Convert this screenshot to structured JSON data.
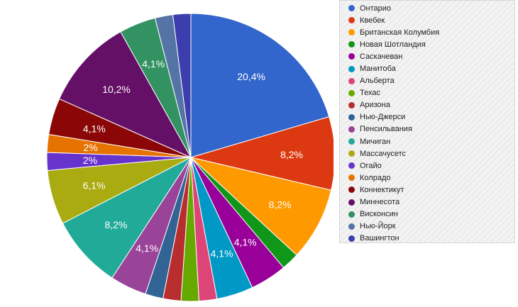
{
  "chart_data": {
    "type": "pie",
    "title": "",
    "legend_position": "right",
    "slices": [
      {
        "name": "Онтарио",
        "value": 20.4,
        "label": "20,4%",
        "color": "#3366cc"
      },
      {
        "name": "Квебек",
        "value": 8.2,
        "label": "8,2%",
        "color": "#dc3912"
      },
      {
        "name": "Британская Колумбия",
        "value": 8.2,
        "label": "8,2%",
        "color": "#ff9900"
      },
      {
        "name": "Новая Шотландия",
        "value": 2.0,
        "label": "",
        "color": "#109618"
      },
      {
        "name": "Саскачеван",
        "value": 4.1,
        "label": "4,1%",
        "color": "#990099"
      },
      {
        "name": "Манитоба",
        "value": 4.1,
        "label": "4,1%",
        "color": "#0099c6"
      },
      {
        "name": "Альберта",
        "value": 2.0,
        "label": "",
        "color": "#dd4477"
      },
      {
        "name": "Техас",
        "value": 2.0,
        "label": "",
        "color": "#66aa00"
      },
      {
        "name": "Аризона",
        "value": 2.0,
        "label": "",
        "color": "#b82e2e"
      },
      {
        "name": "Нью-Джерси",
        "value": 2.0,
        "label": "",
        "color": "#316395"
      },
      {
        "name": "Пенсильвания",
        "value": 4.1,
        "label": "4,1%",
        "color": "#994499"
      },
      {
        "name": "Мичиган",
        "value": 8.2,
        "label": "8,2%",
        "color": "#22aa99"
      },
      {
        "name": "Массачусетс",
        "value": 6.1,
        "label": "6,1%",
        "color": "#aaaa11"
      },
      {
        "name": "Огайо",
        "value": 2.0,
        "label": "2%",
        "color": "#6633cc"
      },
      {
        "name": "Колрадо",
        "value": 2.0,
        "label": "2%",
        "color": "#e67300"
      },
      {
        "name": "Коннектикут",
        "value": 4.1,
        "label": "4,1%",
        "color": "#8b0707"
      },
      {
        "name": "Миннесота",
        "value": 10.2,
        "label": "10,2%",
        "color": "#651067"
      },
      {
        "name": "Висконсин",
        "value": 4.1,
        "label": "4,1%",
        "color": "#329262"
      },
      {
        "name": "Нью-Йорк",
        "value": 2.0,
        "label": "",
        "color": "#5574a6"
      },
      {
        "name": "Вашингтон",
        "value": 2.0,
        "label": "",
        "color": "#3b3eac"
      }
    ]
  }
}
